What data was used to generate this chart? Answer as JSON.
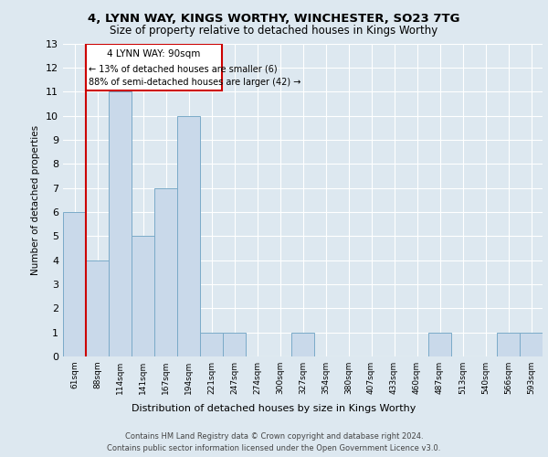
{
  "title1": "4, LYNN WAY, KINGS WORTHY, WINCHESTER, SO23 7TG",
  "title2": "Size of property relative to detached houses in Kings Worthy",
  "xlabel": "Distribution of detached houses by size in Kings Worthy",
  "ylabel": "Number of detached properties",
  "categories": [
    "61sqm",
    "88sqm",
    "114sqm",
    "141sqm",
    "167sqm",
    "194sqm",
    "221sqm",
    "247sqm",
    "274sqm",
    "300sqm",
    "327sqm",
    "354sqm",
    "380sqm",
    "407sqm",
    "433sqm",
    "460sqm",
    "487sqm",
    "513sqm",
    "540sqm",
    "566sqm",
    "593sqm"
  ],
  "values": [
    6,
    4,
    11,
    5,
    7,
    10,
    1,
    1,
    0,
    0,
    1,
    0,
    0,
    0,
    0,
    0,
    1,
    0,
    0,
    1,
    1
  ],
  "bar_color": "#c9d9ea",
  "bar_edge_color": "#7aaac8",
  "marker_label": "4 LYNN WAY: 90sqm",
  "annotation_line1": "← 13% of detached houses are smaller (6)",
  "annotation_line2": "88% of semi-detached houses are larger (42) →",
  "marker_color": "#cc0000",
  "box_edge_color": "#cc0000",
  "ylim": [
    0,
    13
  ],
  "yticks": [
    0,
    1,
    2,
    3,
    4,
    5,
    6,
    7,
    8,
    9,
    10,
    11,
    12,
    13
  ],
  "footer1": "Contains HM Land Registry data © Crown copyright and database right 2024.",
  "footer2": "Contains public sector information licensed under the Open Government Licence v3.0.",
  "bg_color": "#dde8f0",
  "plot_bg_color": "#dde8f0"
}
